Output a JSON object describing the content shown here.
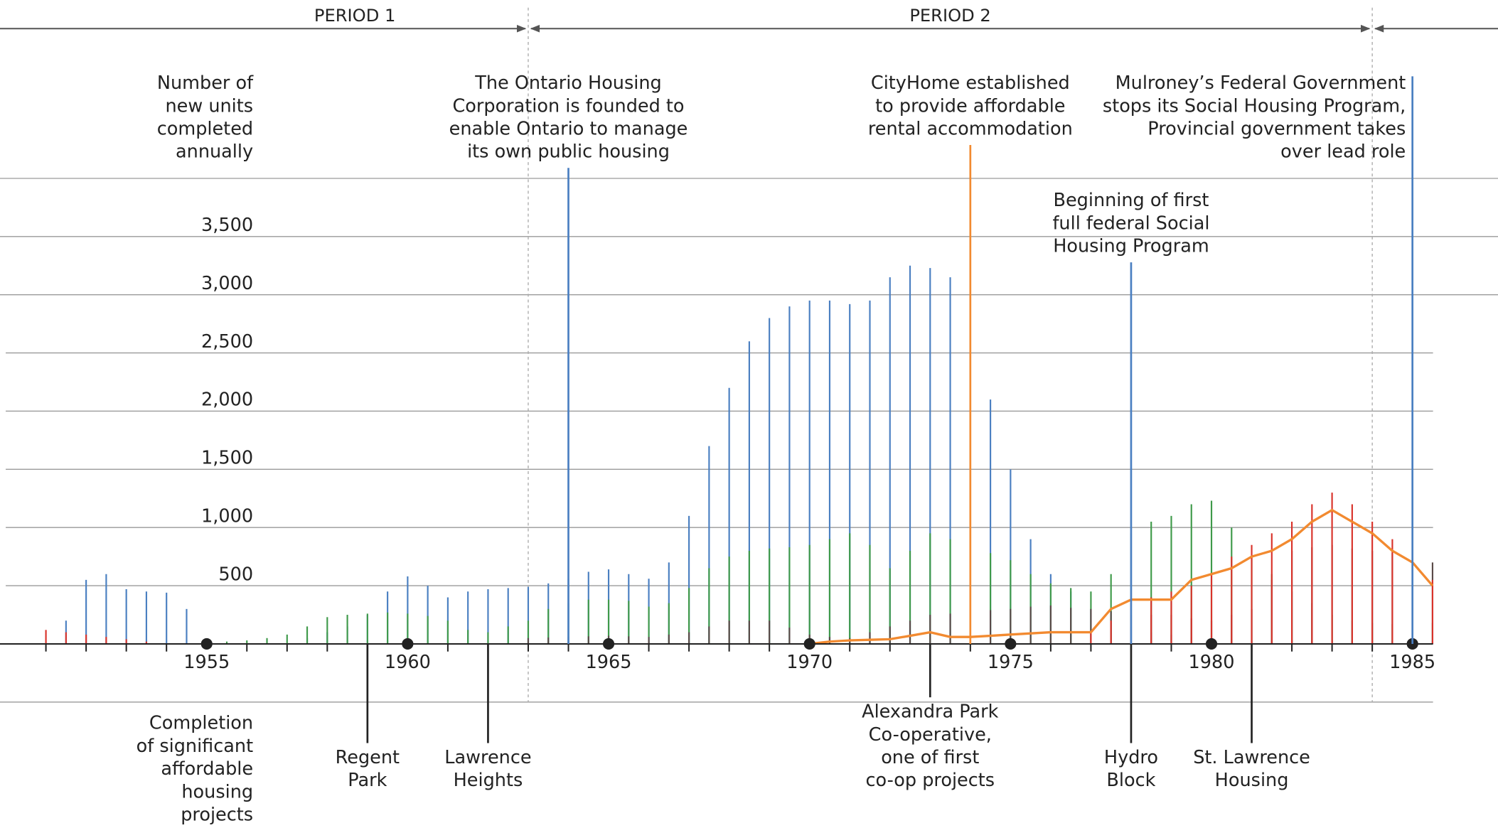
{
  "chart_data": {
    "type": "stem",
    "ylabel": [
      "Number of",
      "new units",
      "completed",
      "annually"
    ],
    "ylim": [
      0,
      4000
    ],
    "yticks": [
      {
        "value": 500,
        "label": "500"
      },
      {
        "value": 1000,
        "label": "1,000"
      },
      {
        "value": 1500,
        "label": "1,500"
      },
      {
        "value": 2000,
        "label": "2,000"
      },
      {
        "value": 2500,
        "label": "2,500"
      },
      {
        "value": 3000,
        "label": "3,000"
      },
      {
        "value": 3500,
        "label": "3,500"
      }
    ],
    "xlim": [
      1949.86,
      1985.55
    ],
    "xticks": [
      1955,
      1960,
      1965,
      1970,
      1975,
      1980,
      1985
    ],
    "xminorticks": [
      1951,
      1952,
      1953,
      1954,
      1956,
      1957,
      1958,
      1959,
      1961,
      1962,
      1963,
      1964,
      1966,
      1967,
      1968,
      1969,
      1971,
      1972,
      1973,
      1974,
      1976,
      1977,
      1978,
      1979,
      1981,
      1982,
      1983,
      1984
    ],
    "grid": true,
    "periods": [
      "PERIOD 1",
      "PERIOD 2"
    ],
    "period_boundaries": [
      1963,
      1984
    ],
    "x": [
      1951,
      1951.5,
      1952,
      1952.5,
      1953,
      1953.5,
      1954,
      1954.5,
      1955,
      1955.5,
      1956,
      1956.5,
      1957,
      1957.5,
      1958,
      1958.5,
      1959,
      1959.5,
      1960,
      1960.5,
      1961,
      1961.5,
      1962,
      1962.5,
      1963,
      1963.5,
      1964,
      1964.5,
      1965,
      1965.5,
      1966,
      1966.5,
      1967,
      1967.5,
      1968,
      1968.5,
      1969,
      1969.5,
      1970,
      1970.5,
      1971,
      1971.5,
      1972,
      1972.5,
      1973,
      1973.5,
      1974,
      1974.5,
      1975,
      1975.5,
      1976,
      1976.5,
      1977,
      1977.5,
      1978,
      1978.5,
      1979,
      1979.5,
      1980,
      1980.5,
      1981,
      1981.5,
      1982,
      1982.5,
      1983,
      1983.5,
      1984,
      1984.5,
      1985,
      1985.5
    ],
    "series": [
      {
        "color": "#4a7fc1",
        "style": "stems",
        "values": [
          0,
          200,
          550,
          600,
          470,
          450,
          440,
          300,
          0,
          0,
          0,
          0,
          0,
          50,
          100,
          150,
          250,
          450,
          580,
          500,
          400,
          450,
          470,
          480,
          490,
          520,
          560,
          620,
          640,
          600,
          560,
          700,
          1100,
          1700,
          2200,
          2600,
          2800,
          2900,
          2950,
          2950,
          2920,
          2950,
          3150,
          3250,
          3230,
          3150,
          2800,
          2100,
          1500,
          900,
          600,
          450,
          300,
          200,
          150,
          100,
          80,
          60,
          50,
          40,
          30,
          30,
          30,
          30,
          30,
          30,
          30,
          30,
          30,
          30
        ]
      },
      {
        "color": "#3f9a4a",
        "style": "stems",
        "values": [
          0,
          0,
          0,
          0,
          0,
          0,
          0,
          0,
          0,
          20,
          30,
          50,
          80,
          150,
          230,
          250,
          260,
          270,
          260,
          240,
          200,
          120,
          100,
          150,
          200,
          300,
          350,
          380,
          380,
          370,
          320,
          350,
          480,
          650,
          750,
          800,
          820,
          830,
          850,
          900,
          950,
          850,
          650,
          800,
          950,
          900,
          820,
          780,
          720,
          600,
          520,
          480,
          450,
          600,
          950,
          1050,
          1100,
          1200,
          1230,
          1000,
          750,
          600,
          450,
          350,
          250,
          200,
          180,
          170,
          170,
          180
        ]
      },
      {
        "color": "#5a4a48",
        "style": "stems",
        "values": [
          0,
          0,
          0,
          0,
          0,
          0,
          0,
          0,
          0,
          0,
          0,
          0,
          0,
          0,
          0,
          0,
          0,
          0,
          0,
          0,
          0,
          0,
          0,
          0,
          50,
          55,
          60,
          65,
          70,
          65,
          60,
          80,
          100,
          150,
          200,
          200,
          200,
          140,
          80,
          60,
          50,
          100,
          150,
          200,
          250,
          260,
          280,
          290,
          300,
          320,
          330,
          310,
          300,
          280,
          250,
          250,
          250,
          220,
          200,
          250,
          300,
          550,
          800,
          830,
          850,
          820,
          800,
          780,
          750,
          700
        ]
      },
      {
        "color": "#d9332b",
        "style": "stems",
        "values": [
          120,
          100,
          80,
          60,
          40,
          20,
          0,
          0,
          0,
          0,
          0,
          0,
          0,
          0,
          0,
          0,
          0,
          0,
          0,
          0,
          0,
          0,
          0,
          0,
          0,
          0,
          0,
          0,
          0,
          0,
          0,
          0,
          0,
          0,
          0,
          0,
          0,
          0,
          0,
          0,
          0,
          0,
          0,
          0,
          0,
          0,
          0,
          0,
          0,
          0,
          0,
          0,
          100,
          200,
          350,
          400,
          450,
          500,
          600,
          750,
          850,
          950,
          1050,
          1200,
          1300,
          1200,
          1050,
          900,
          700,
          550
        ]
      },
      {
        "color": "#f28a30",
        "style": "line",
        "values": [
          null,
          null,
          null,
          null,
          null,
          null,
          null,
          null,
          null,
          null,
          null,
          null,
          null,
          null,
          null,
          null,
          null,
          null,
          null,
          null,
          null,
          null,
          null,
          null,
          null,
          null,
          null,
          null,
          null,
          null,
          null,
          null,
          null,
          null,
          null,
          null,
          null,
          null,
          0,
          20,
          30,
          35,
          40,
          70,
          100,
          60,
          60,
          70,
          80,
          90,
          100,
          100,
          100,
          300,
          380,
          380,
          380,
          550,
          600,
          650,
          750,
          800,
          900,
          1050,
          1150,
          1050,
          950,
          800,
          700,
          500
        ]
      }
    ],
    "annotations": [
      {
        "year": 1964,
        "color": "#4a7fc1",
        "lines": [
          "The Ontario Housing",
          "Corporation is founded to",
          "enable Ontario to manage",
          "its own public housing"
        ]
      },
      {
        "year": 1974,
        "color": "#f28a30",
        "lines": [
          "CityHome established",
          "to provide affordable",
          "rental accommodation"
        ]
      },
      {
        "year": 1978,
        "color": "#4a7fc1",
        "lines": [
          "Beginning of first",
          "full federal Social",
          "Housing Program"
        ]
      },
      {
        "year": 1985,
        "color": "#4a7fc1",
        "lines": [
          "Mulroney’s Federal Government",
          "stops its Social Housing Program,",
          "Provincial government takes",
          "over lead role"
        ]
      }
    ],
    "projects_label": [
      "Completion",
      "of significant",
      "affordable",
      "housing",
      "projects"
    ],
    "projects": [
      {
        "year": 1959,
        "lines": [
          "Regent",
          "Park"
        ]
      },
      {
        "year": 1962,
        "lines": [
          "Lawrence",
          "Heights"
        ]
      },
      {
        "year": 1973,
        "lines": [
          "Alexandra Park",
          "Co-operative,",
          "one of first",
          "co-op projects"
        ]
      },
      {
        "year": 1978,
        "lines": [
          "Hydro",
          "Block"
        ]
      },
      {
        "year": 1981,
        "lines": [
          "St. Lawrence",
          "Housing"
        ]
      }
    ]
  }
}
